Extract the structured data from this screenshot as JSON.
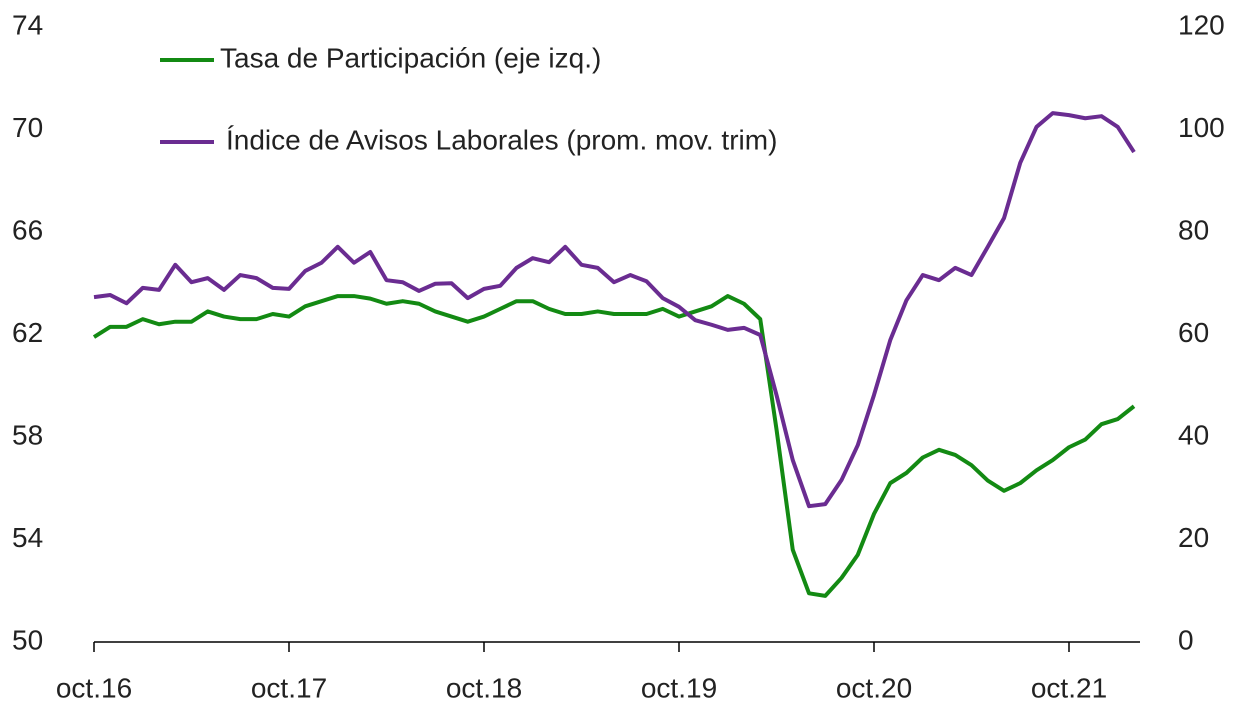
{
  "chart_data": {
    "type": "line",
    "categories": [
      "oct.16",
      null,
      null,
      null,
      null,
      null,
      null,
      null,
      null,
      null,
      null,
      null,
      "oct.17",
      null,
      null,
      null,
      null,
      null,
      null,
      null,
      null,
      null,
      null,
      null,
      "oct.18",
      null,
      null,
      null,
      null,
      null,
      null,
      null,
      null,
      null,
      null,
      null,
      "oct.19",
      null,
      null,
      null,
      null,
      null,
      null,
      null,
      null,
      null,
      null,
      null,
      "oct.20",
      null,
      null,
      null,
      null,
      null,
      null,
      null,
      null,
      null,
      null,
      null,
      "oct.21",
      null,
      null,
      null,
      null
    ],
    "series": [
      {
        "name": "Tasa de Participación (eje izq.)",
        "color": "#138a13",
        "values": [
          61.9,
          62.3,
          62.3,
          62.6,
          62.4,
          62.5,
          62.5,
          62.9,
          62.7,
          62.6,
          62.6,
          62.8,
          62.7,
          63.1,
          63.3,
          63.5,
          63.5,
          63.4,
          63.2,
          63.3,
          63.2,
          62.9,
          62.7,
          62.5,
          62.7,
          63.0,
          63.3,
          63.3,
          63.0,
          62.8,
          62.8,
          62.9,
          62.8,
          62.8,
          62.8,
          63.0,
          62.7,
          62.9,
          63.1,
          63.5,
          63.2,
          62.6,
          58.3,
          53.6,
          51.9,
          51.8,
          52.5,
          53.4,
          55.0,
          56.2,
          56.6,
          57.2,
          57.5,
          57.3,
          56.9,
          56.3,
          55.9,
          56.2,
          56.7,
          57.1,
          57.6,
          57.9,
          58.5,
          58.7,
          59.2
        ]
      },
      {
        "name": "Índice de Avisos Laborales (prom. mov. trim)",
        "color": "#6a2c91",
        "axis": "y2",
        "values": [
          67.3,
          67.7,
          66.1,
          69.1,
          68.7,
          73.6,
          70.2,
          71.0,
          68.7,
          71.6,
          71.0,
          69.1,
          68.9,
          72.4,
          74.0,
          77.1,
          74.0,
          76.1,
          70.6,
          70.2,
          68.5,
          69.9,
          70.0,
          67.1,
          68.9,
          69.5,
          73.0,
          74.9,
          74.1,
          77.1,
          73.6,
          73.0,
          70.2,
          71.6,
          70.4,
          67.1,
          65.4,
          62.8,
          61.9,
          60.9,
          61.3,
          59.9,
          48.2,
          35.5,
          26.5,
          26.9,
          31.6,
          38.4,
          48.2,
          58.9,
          66.7,
          71.6,
          70.6,
          73.0,
          71.6,
          77.1,
          82.7,
          93.5,
          100.5,
          103.2,
          102.8,
          102.2,
          102.6,
          100.5,
          95.6
        ]
      }
    ],
    "ylim": [
      50,
      74
    ],
    "yticks": [
      50,
      54,
      58,
      62,
      66,
      70,
      74
    ],
    "y2lim": [
      0,
      120
    ],
    "y2ticks": [
      0,
      20,
      40,
      60,
      80,
      100,
      120
    ],
    "grid": false,
    "legend": "top-left"
  }
}
